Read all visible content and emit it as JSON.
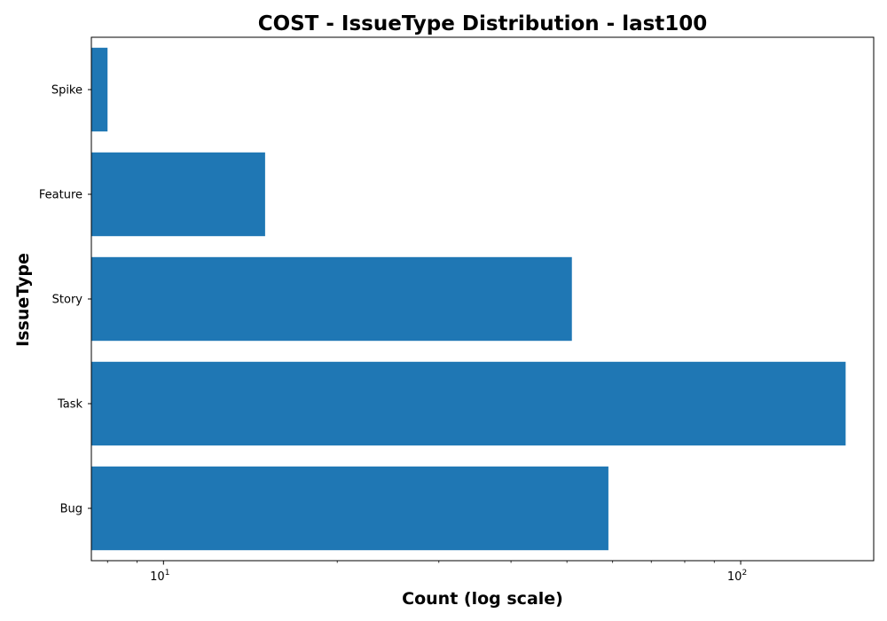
{
  "chart_data": {
    "type": "bar",
    "orientation": "horizontal",
    "title": "COST - IssueType Distribution - last100",
    "xlabel": "Count (log scale)",
    "ylabel": "IssueType",
    "xscale": "log",
    "xlim": [
      7.5,
      170
    ],
    "categories": [
      "Bug",
      "Task",
      "Story",
      "Feature",
      "Spike"
    ],
    "values": [
      59,
      152,
      51,
      15,
      8
    ],
    "x_ticks": [
      {
        "value": 10,
        "base": "10",
        "exponent": "1"
      },
      {
        "value": 100,
        "base": "10",
        "exponent": "2"
      }
    ],
    "bar_color": "#1f77b4",
    "grid": false,
    "legend": "none"
  }
}
